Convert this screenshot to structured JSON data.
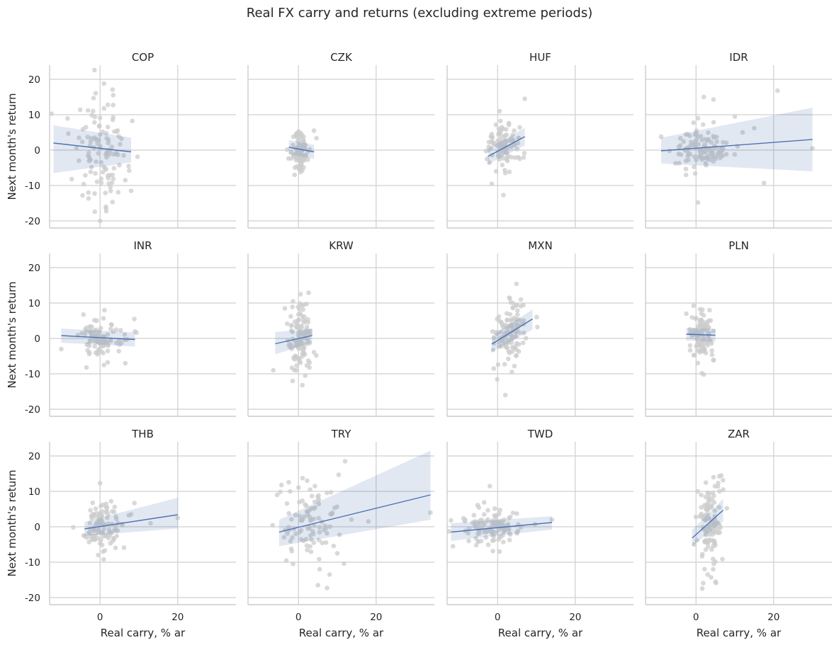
{
  "figure": {
    "title": "Real FX carry and returns (excluding extreme periods)",
    "ylabel": "Next month's return",
    "xlabel": "Real carry, % ar"
  },
  "colors": {
    "point": "#cccccc",
    "line": "#4c72b0",
    "band": "#4c72b0",
    "grid": "#cfcfcf",
    "spine": "#cccccc"
  },
  "chart_data": {
    "type": "scatter",
    "xlim": [
      -13,
      35
    ],
    "ylim": [
      -22,
      24
    ],
    "xticks": [
      0,
      20
    ],
    "yticks": [
      -20,
      -10,
      0,
      10,
      20
    ],
    "panels": [
      {
        "name": "COP",
        "fit": [
          [
            -12,
            2.0
          ],
          [
            8,
            -0.5
          ]
        ],
        "band_low": [
          [
            -12,
            -6.5
          ],
          [
            8,
            -3.5
          ]
        ],
        "band_high": [
          [
            -12,
            7.0
          ],
          [
            8,
            3.5
          ]
        ],
        "center": [
          0.5,
          0
        ],
        "spread": [
          3.5,
          7.5
        ],
        "n": 110,
        "outliers": [
          [
            -12.5,
            10.3
          ],
          [
            1,
            18.8
          ],
          [
            0,
            -20
          ],
          [
            1.5,
            -16
          ],
          [
            2,
            12.8
          ],
          [
            6.5,
            -8.5
          ],
          [
            8,
            -11.5
          ],
          [
            -3,
            -12
          ]
        ]
      },
      {
        "name": "CZK",
        "fit": [
          [
            -2.5,
            0.8
          ],
          [
            4,
            -0.5
          ]
        ],
        "band_low": [
          [
            -2.5,
            -1.2
          ],
          [
            4,
            -2.5
          ]
        ],
        "band_high": [
          [
            -2.5,
            2.8
          ],
          [
            4,
            1.5
          ]
        ],
        "center": [
          0.5,
          0
        ],
        "spread": [
          1.3,
          2.5
        ],
        "n": 95,
        "outliers": [
          [
            -1,
            -7
          ],
          [
            0.5,
            -6.2
          ],
          [
            4,
            5.5
          ]
        ]
      },
      {
        "name": "HUF",
        "fit": [
          [
            -2.5,
            -1.8
          ],
          [
            7,
            3.8
          ]
        ],
        "band_low": [
          [
            -2.5,
            -4.0
          ],
          [
            7,
            1.3
          ]
        ],
        "band_high": [
          [
            -2.5,
            0.4
          ],
          [
            7,
            6.3
          ]
        ],
        "center": [
          1.5,
          1
        ],
        "spread": [
          2.0,
          3.5
        ],
        "n": 95,
        "outliers": [
          [
            7,
            14.5
          ],
          [
            1.5,
            -12.7
          ],
          [
            0.5,
            11
          ],
          [
            -1.5,
            -9.5
          ]
        ]
      },
      {
        "name": "IDR",
        "fit": [
          [
            -9,
            -0.2
          ],
          [
            30,
            3.0
          ]
        ],
        "band_low": [
          [
            -9,
            -3.8
          ],
          [
            30,
            -6.0
          ]
        ],
        "band_high": [
          [
            -9,
            3.5
          ],
          [
            30,
            12.0
          ]
        ],
        "center": [
          2,
          1
        ],
        "spread": [
          3.5,
          3.0
        ],
        "n": 110,
        "outliers": [
          [
            21,
            16.8
          ],
          [
            17.5,
            -9.3
          ],
          [
            0.5,
            -14.8
          ],
          [
            30,
            0.5
          ],
          [
            -9,
            3.8
          ],
          [
            2,
            15
          ],
          [
            4.5,
            14.3
          ],
          [
            10,
            9.5
          ],
          [
            12,
            5
          ],
          [
            15,
            6.2
          ]
        ]
      },
      {
        "name": "INR",
        "fit": [
          [
            -10,
            0.8
          ],
          [
            9,
            -0.3
          ]
        ],
        "band_low": [
          [
            -10,
            -1.2
          ],
          [
            9,
            -2.3
          ]
        ],
        "band_high": [
          [
            -10,
            2.8
          ],
          [
            9,
            1.7
          ]
        ],
        "center": [
          0.5,
          0
        ],
        "spread": [
          3.0,
          2.8
        ],
        "n": 95,
        "outliers": [
          [
            -3.5,
            -8.2
          ],
          [
            -10,
            -3
          ],
          [
            1,
            -7.5
          ],
          [
            6.5,
            -7
          ],
          [
            9,
            2
          ]
        ]
      },
      {
        "name": "KRW",
        "fit": [
          [
            -6,
            -1.5
          ],
          [
            3.5,
            0.8
          ]
        ],
        "band_low": [
          [
            -6,
            -4.5
          ],
          [
            3.5,
            -1.2
          ]
        ],
        "band_high": [
          [
            -6,
            1.8
          ],
          [
            3.5,
            2.8
          ]
        ],
        "center": [
          0.5,
          0
        ],
        "spread": [
          1.5,
          5.0
        ],
        "n": 115,
        "outliers": [
          [
            0.5,
            12.5
          ],
          [
            1,
            -13.2
          ],
          [
            -1.5,
            -12
          ],
          [
            -6.5,
            -9
          ],
          [
            -3.5,
            8.5
          ]
        ]
      },
      {
        "name": "MXN",
        "fit": [
          [
            -1.5,
            -1.6
          ],
          [
            9,
            5.5
          ]
        ],
        "band_low": [
          [
            -1.5,
            -3.8
          ],
          [
            9,
            2.5
          ]
        ],
        "band_high": [
          [
            -1.5,
            0.8
          ],
          [
            9,
            8.2
          ]
        ],
        "center": [
          3,
          1.5
        ],
        "spread": [
          2.0,
          4.5
        ],
        "n": 115,
        "outliers": [
          [
            2,
            -16
          ],
          [
            3,
            11.5
          ],
          [
            6,
            11
          ],
          [
            -1,
            -8.5
          ]
        ]
      },
      {
        "name": "PLN",
        "fit": [
          [
            -2.5,
            1.2
          ],
          [
            5,
            0.9
          ]
        ],
        "band_low": [
          [
            -2.5,
            -0.6
          ],
          [
            5,
            -0.9
          ]
        ],
        "band_high": [
          [
            -2.5,
            3.0
          ],
          [
            5,
            2.7
          ]
        ],
        "center": [
          1.5,
          1
        ],
        "spread": [
          1.5,
          3.2
        ],
        "n": 100,
        "outliers": [
          [
            1.5,
            -9.8
          ],
          [
            2,
            -10.2
          ],
          [
            3.5,
            8
          ],
          [
            -2.5,
            7
          ]
        ]
      },
      {
        "name": "THB",
        "fit": [
          [
            -4,
            -0.6
          ],
          [
            20,
            3.4
          ]
        ],
        "band_low": [
          [
            -4,
            -2.6
          ],
          [
            20,
            -0.5
          ]
        ],
        "band_high": [
          [
            -4,
            1.4
          ],
          [
            20,
            8.2
          ]
        ],
        "center": [
          1,
          0.5
        ],
        "spread": [
          2.5,
          3.8
        ],
        "n": 110,
        "outliers": [
          [
            0,
            12.3
          ],
          [
            20,
            2.5
          ],
          [
            13,
            1
          ],
          [
            8,
            3.5
          ],
          [
            -0.5,
            -8
          ]
        ]
      },
      {
        "name": "TRY",
        "fit": [
          [
            -5,
            -1.5
          ],
          [
            34,
            9.0
          ]
        ],
        "band_low": [
          [
            -5,
            -5.5
          ],
          [
            34,
            2.0
          ]
        ],
        "band_high": [
          [
            -5,
            2.0
          ],
          [
            34,
            21.5
          ]
        ],
        "center": [
          3,
          1
        ],
        "spread": [
          4.0,
          6.5
        ],
        "n": 100,
        "outliers": [
          [
            12,
            18.5
          ],
          [
            5,
            -16.5
          ],
          [
            8,
            -13.5
          ],
          [
            34,
            4
          ],
          [
            -5.5,
            9
          ],
          [
            10,
            -7.5
          ],
          [
            18,
            1.5
          ]
        ]
      },
      {
        "name": "TWD",
        "fit": [
          [
            -12,
            -1.5
          ],
          [
            14,
            1.2
          ]
        ],
        "band_low": [
          [
            -12,
            -4.0
          ],
          [
            14,
            -0.8
          ]
        ],
        "band_high": [
          [
            -12,
            1.0
          ],
          [
            14,
            3.0
          ]
        ],
        "center": [
          -1,
          0
        ],
        "spread": [
          4.0,
          2.5
        ],
        "n": 110,
        "outliers": [
          [
            -2,
            11.5
          ],
          [
            14,
            2
          ],
          [
            -12,
            1.8
          ],
          [
            -11.5,
            -5.5
          ],
          [
            0.5,
            -7
          ]
        ]
      },
      {
        "name": "ZAR",
        "fit": [
          [
            -1,
            -3.2
          ],
          [
            7,
            4.7
          ]
        ],
        "band_low": [
          [
            -1,
            -5.5
          ],
          [
            7,
            1.5
          ]
        ],
        "band_high": [
          [
            -1,
            -0.9
          ],
          [
            7,
            7.9
          ]
        ],
        "center": [
          3.5,
          1
        ],
        "spread": [
          1.5,
          5.5
        ],
        "n": 115,
        "outliers": [
          [
            5,
            -15.5
          ],
          [
            6.5,
            14.5
          ],
          [
            4.5,
            14
          ],
          [
            3,
            -13.5
          ],
          [
            7,
            10.5
          ],
          [
            -0.5,
            -5
          ]
        ]
      }
    ]
  }
}
